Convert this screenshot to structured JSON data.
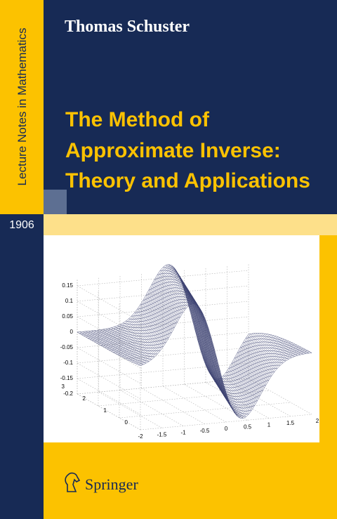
{
  "series_label": "Lecture Notes in Mathematics",
  "author": "Thomas Schuster",
  "title": [
    "The Method of",
    "Approximate Inverse:",
    "Theory and Applications"
  ],
  "volume": "1906",
  "figure": {
    "zticks": [
      "0.15",
      "0.1",
      "0.05",
      "0",
      "-0.05",
      "-0.1",
      "-0.15",
      "-0.2"
    ],
    "yticks": [
      "0",
      "1",
      "2",
      "3"
    ],
    "xticks": [
      "-2",
      "-1.5",
      "-1",
      "-0.5",
      "0",
      "0.5",
      "1",
      "1.5",
      "2"
    ]
  },
  "publisher": "Springer"
}
